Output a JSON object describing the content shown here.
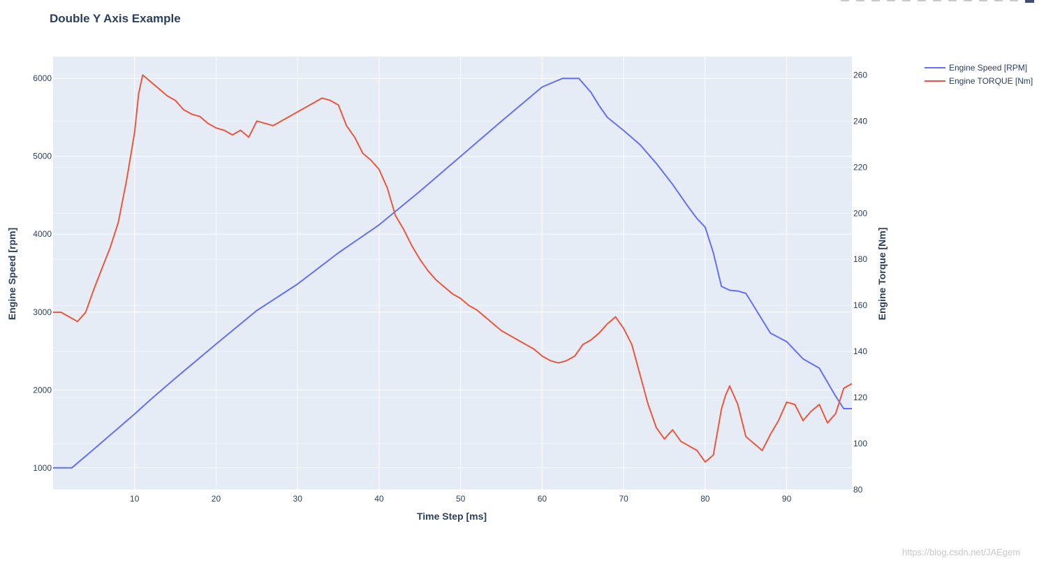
{
  "toolbar": {
    "icons": [
      "camera-icon",
      "zoom-icon",
      "pan-icon",
      "box-select-icon",
      "lasso-icon",
      "zoom-in-icon",
      "zoom-out-icon",
      "autoscale-icon",
      "reset-axes-icon",
      "spike-lines-icon",
      "hover-closest-icon",
      "hover-compare-icon",
      "plotly-logo-icon"
    ]
  },
  "watermark": "https://blog.csdn.net/JAEgem",
  "chart_data": {
    "type": "line",
    "title": "Double Y Axis Example",
    "xlabel": "Time Step [ms]",
    "ylabel": "Engine Speed [rpm]",
    "y2label": "Engine Torque [Nm]",
    "xlim": [
      0,
      98
    ],
    "ylim": [
      720,
      6280
    ],
    "y2lim": [
      80,
      268
    ],
    "xticks": [
      10,
      20,
      30,
      40,
      50,
      60,
      70,
      80,
      90
    ],
    "yticks": [
      1000,
      2000,
      3000,
      4000,
      5000,
      6000
    ],
    "y2ticks": [
      80,
      100,
      120,
      140,
      160,
      180,
      200,
      220,
      240,
      260
    ],
    "grid": true,
    "legend_position": "top-right",
    "series": [
      {
        "name": "Engine Speed [RPM]",
        "axis": "y",
        "color": "#636efa",
        "x": [
          0,
          2.3,
          5,
          10,
          12,
          15,
          20,
          25,
          30,
          35,
          40,
          45,
          50,
          55,
          60,
          62.5,
          64.5,
          66,
          67,
          68,
          70,
          72,
          74,
          76,
          78,
          79,
          80,
          81,
          82,
          83,
          84,
          85,
          86,
          88,
          90,
          92,
          94,
          96,
          97,
          98
        ],
        "values": [
          1000,
          1000,
          1240,
          1690,
          1880,
          2150,
          2590,
          3020,
          3360,
          3760,
          4120,
          4550,
          5000,
          5450,
          5890,
          6000,
          6000,
          5820,
          5650,
          5500,
          5330,
          5150,
          4910,
          4640,
          4340,
          4200,
          4090,
          3760,
          3330,
          3280,
          3270,
          3240,
          3070,
          2730,
          2620,
          2400,
          2280,
          1920,
          1760,
          1760
        ]
      },
      {
        "name": "Engine TORQUE [Nm]",
        "axis": "y2",
        "color": "#ef553b",
        "x": [
          0,
          1,
          2,
          3,
          4,
          5,
          6,
          7,
          8,
          9,
          10,
          10.5,
          11,
          12,
          13,
          14,
          15,
          16,
          17,
          18,
          19,
          20,
          21,
          22,
          23,
          24,
          25,
          26,
          27,
          28,
          29,
          30,
          31,
          32,
          33,
          34,
          35,
          36,
          37,
          38,
          39,
          40,
          41,
          42,
          43,
          44,
          45,
          46,
          47,
          48,
          49,
          50,
          51,
          52,
          53,
          54,
          55,
          56,
          57,
          58,
          59,
          60,
          61,
          62,
          63,
          64,
          65,
          66,
          67,
          68,
          69,
          70,
          71,
          72,
          73,
          74,
          75,
          76,
          77,
          78,
          79,
          80,
          81,
          82,
          82.5,
          83,
          84,
          85,
          86,
          87,
          88,
          89,
          90,
          91,
          92,
          93,
          94,
          95,
          96,
          97,
          98
        ],
        "values": [
          157,
          157,
          155,
          153,
          157,
          167,
          176,
          185,
          196,
          214,
          235,
          252,
          260,
          257,
          254,
          251,
          249,
          245,
          243,
          242,
          239,
          237,
          236,
          234,
          236,
          233,
          240,
          239,
          238,
          240,
          242,
          244,
          246,
          248,
          250,
          249,
          247,
          238,
          233,
          226,
          223,
          219,
          211,
          199,
          193,
          186,
          180,
          175,
          171,
          168,
          165,
          163,
          160,
          158,
          155,
          152,
          149,
          147,
          145,
          143,
          141,
          138,
          136,
          135,
          136,
          138,
          143,
          145,
          148,
          152,
          155,
          150,
          143,
          130,
          117,
          107,
          102,
          106,
          101,
          99,
          97,
          92,
          95,
          115,
          121,
          125,
          117,
          103,
          100,
          97,
          104,
          110,
          118,
          117,
          110,
          114,
          117,
          109,
          113,
          124,
          126
        ]
      }
    ]
  }
}
